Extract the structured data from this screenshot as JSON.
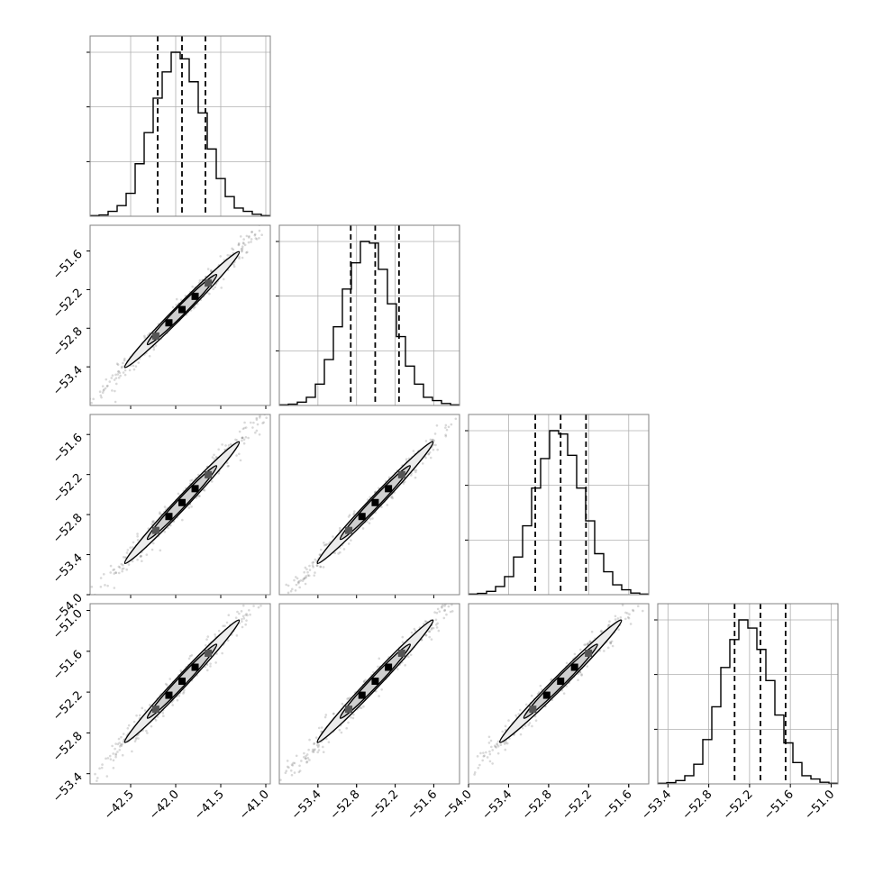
{
  "chart_data": {
    "type": "corner",
    "parameters": 4,
    "histogram_bins": 20,
    "colors": {
      "line": "#000000",
      "grid": "#b0b0b0",
      "frame": "#808080",
      "scatter": "#666666"
    },
    "quantile_lines": "dashed",
    "grid": true,
    "axes": [
      {
        "range": [
          -42.95,
          -40.95
        ],
        "ticks": [
          {
            "value": -42.5,
            "label": "−42.5"
          },
          {
            "value": -42.0,
            "label": "−42.0"
          },
          {
            "value": -41.5,
            "label": "−41.5"
          },
          {
            "value": -41.0,
            "label": "−41.0"
          }
        ],
        "quantiles": [
          -42.2,
          -41.93,
          -41.67
        ],
        "hist_counts": [
          0.4,
          0.8,
          3,
          6.5,
          14,
          32,
          51,
          72,
          88,
          100,
          96,
          82,
          63,
          41,
          23,
          12,
          5,
          3,
          1.2,
          0.4
        ]
      },
      {
        "range": [
          -54.0,
          -51.2
        ],
        "ticks": [
          {
            "value": -53.4,
            "label": "−53.4"
          },
          {
            "value": -52.8,
            "label": "−52.8"
          },
          {
            "value": -52.2,
            "label": "−52.2"
          },
          {
            "value": -51.6,
            "label": "−51.6"
          }
        ],
        "quantiles": [
          -52.89,
          -52.51,
          -52.14
        ],
        "hist_counts": [
          0.4,
          0.8,
          2,
          5,
          13,
          28,
          48,
          71,
          87,
          100,
          99,
          83,
          62,
          42,
          24,
          13,
          5,
          3,
          1.2,
          0.4
        ]
      },
      {
        "range": [
          -54.0,
          -51.3
        ],
        "ticks": [
          {
            "value": -54.0,
            "label": "−54.0"
          },
          {
            "value": -53.4,
            "label": "−53.4"
          },
          {
            "value": -52.8,
            "label": "−52.8"
          },
          {
            "value": -52.2,
            "label": "−52.2"
          },
          {
            "value": -51.6,
            "label": "−51.6"
          }
        ],
        "quantiles": [
          -53.0,
          -52.62,
          -52.24
        ],
        "hist_counts": [
          0.4,
          0.8,
          2,
          5,
          11,
          23,
          42,
          65,
          83,
          100,
          98,
          85,
          65,
          45,
          25,
          14,
          6,
          3,
          1,
          0.4
        ]
      },
      {
        "range": [
          -53.55,
          -50.9
        ],
        "ticks": [
          {
            "value": -53.4,
            "label": "−53.4"
          },
          {
            "value": -52.8,
            "label": "−52.8"
          },
          {
            "value": -52.2,
            "label": "−52.2"
          },
          {
            "value": -51.6,
            "label": "−51.6"
          },
          {
            "value": -51.0,
            "label": "−51.0"
          }
        ],
        "quantiles": [
          -52.42,
          -52.04,
          -51.67
        ],
        "hist_counts": [
          0.4,
          0.8,
          2,
          5,
          12,
          27,
          47,
          71,
          88,
          100,
          95,
          82,
          63,
          42,
          25,
          13,
          5,
          3,
          1,
          0.4
        ]
      }
    ],
    "row_tick_overrides": {
      "2": [
        {
          "value": -51.6,
          "label": "−51.6"
        },
        {
          "value": -52.2,
          "label": "−52.2"
        },
        {
          "value": -52.8,
          "label": "−52.8"
        },
        {
          "value": -53.4,
          "label": "−53.4"
        },
        {
          "value": -54.0,
          "label": "−54.0"
        }
      ],
      "3": [
        {
          "value": -51.0,
          "label": "−51.0"
        },
        {
          "value": -51.6,
          "label": "−51.6"
        },
        {
          "value": -52.2,
          "label": "−52.2"
        },
        {
          "value": -52.8,
          "label": "−52.8"
        },
        {
          "value": -53.4,
          "label": "−53.4"
        }
      ]
    },
    "correlation": 0.99
  }
}
